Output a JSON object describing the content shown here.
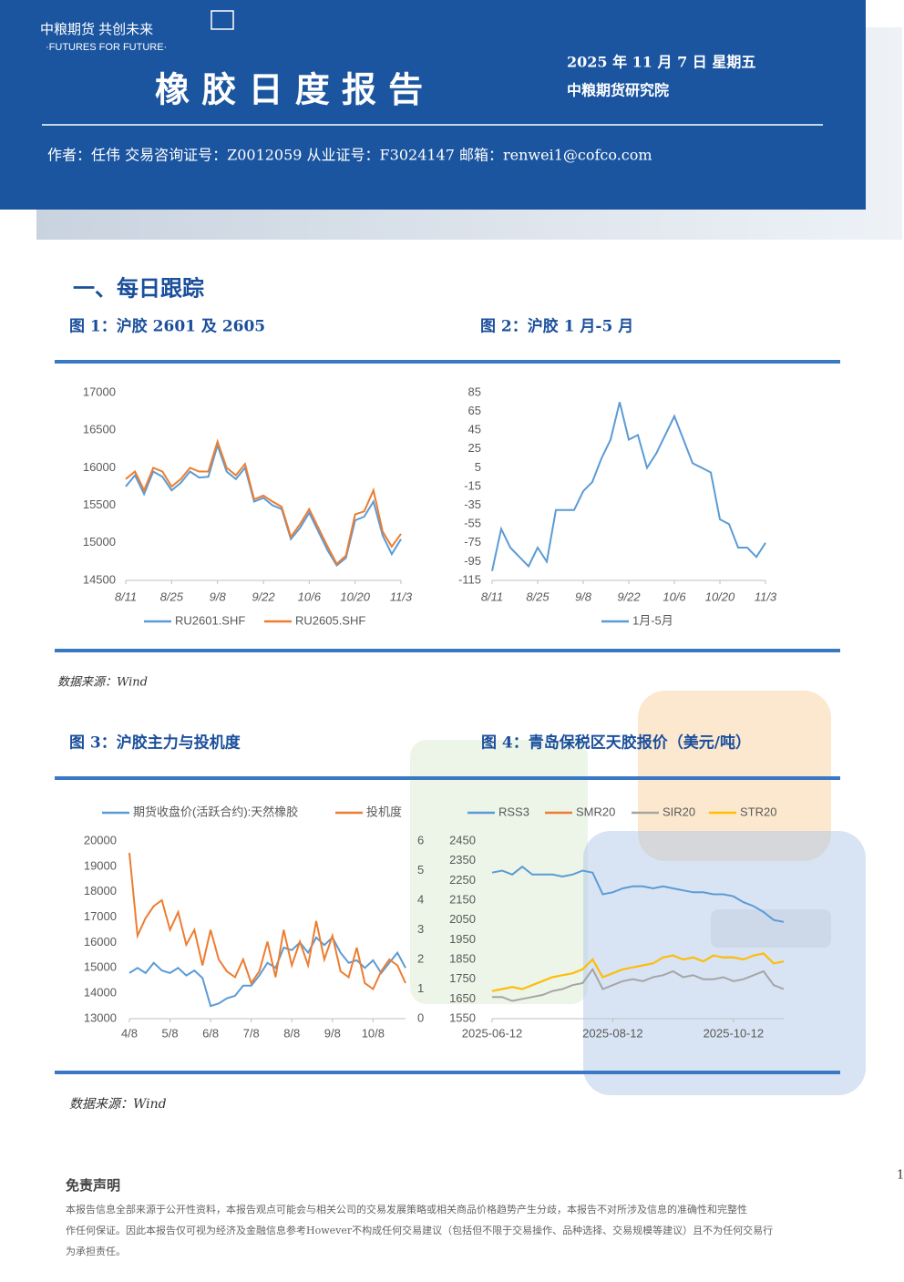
{
  "header": {
    "logo_cn": "中粮期货  共创未来",
    "logo_en": "·FUTURES FOR FUTURE·",
    "title": "橡 胶 日 度 报 告",
    "date": "2025 年 11 月 7 日  星期五",
    "institute": "中粮期货研究院",
    "author_line": "作者：任伟   交易咨询证号：Z0012059   从业证号：F3024147   邮箱：renwei1@cofco.com"
  },
  "section": "一、每日跟踪",
  "sources": [
    "数据来源：Wind",
    "数据来源：Wind"
  ],
  "disclaimer": {
    "title": "免责声明",
    "lines": [
      "本报告信息全部来源于公开性资料，本报告观点可能会与相关公司的交易发展策略或相关商品价格趋势产生分歧，本报告不对所涉及信息的准确性和完整性",
      "作任何保证。因此本报告仅可视为经济及金融信息参考However不构成任何交易建议（包括但不限于交易操作、品种选择、交易规模等建议）且不为任何交易行",
      "为承担责任。"
    ]
  },
  "page_number": "1",
  "chart_data": [
    {
      "type": "line",
      "title": "图 1：沪胶 2601 及 2605",
      "categories": [
        "8/11",
        null,
        null,
        null,
        null,
        "8/25",
        null,
        null,
        null,
        null,
        "9/8",
        null,
        null,
        null,
        null,
        "9/22",
        null,
        null,
        null,
        null,
        "10/6",
        null,
        null,
        null,
        null,
        "10/20",
        null,
        null,
        null,
        null,
        "11/3"
      ],
      "series": [
        {
          "name": "RU2601.SHF",
          "color": "#5b9bd5",
          "values": [
            15750,
            15900,
            15650,
            15950,
            15880,
            15700,
            15800,
            15950,
            15870,
            15880,
            16300,
            15950,
            15850,
            16000,
            15550,
            15600,
            15500,
            15450,
            15050,
            15200,
            15400,
            15150,
            14900,
            14700,
            14800,
            15300,
            15350,
            15550,
            15100,
            14850,
            15050
          ]
        },
        {
          "name": "RU2605.SHF",
          "color": "#ed7d31",
          "values": [
            15850,
            15950,
            15700,
            16000,
            15950,
            15750,
            15850,
            16000,
            15950,
            15950,
            16350,
            16000,
            15900,
            16050,
            15580,
            15630,
            15550,
            15480,
            15080,
            15250,
            15450,
            15200,
            14950,
            14720,
            14830,
            15380,
            15420,
            15700,
            15150,
            14950,
            15120
          ]
        }
      ],
      "ylim": [
        14500,
        17000
      ],
      "yticks": [
        14500,
        15000,
        15500,
        16000,
        16500,
        17000
      ]
    },
    {
      "type": "line",
      "title": "图 2：沪胶 1 月-5 月",
      "categories": [
        "8/11",
        null,
        null,
        null,
        null,
        "8/25",
        null,
        null,
        null,
        null,
        "9/8",
        null,
        null,
        null,
        null,
        "9/22",
        null,
        null,
        null,
        null,
        "10/6",
        null,
        null,
        null,
        null,
        "10/20",
        null,
        null,
        null,
        null,
        "11/3"
      ],
      "series": [
        {
          "name": "1月-5月",
          "color": "#5b9bd5",
          "values": [
            -105,
            -60,
            -80,
            -90,
            -100,
            -80,
            -95,
            -40,
            -40,
            -40,
            -20,
            -10,
            15,
            35,
            75,
            35,
            40,
            5,
            20,
            40,
            60,
            35,
            10,
            5,
            0,
            -50,
            -55,
            -80,
            -80,
            -90,
            -75
          ]
        }
      ],
      "ylim": [
        -115,
        85
      ],
      "yticks": [
        -115,
        -95,
        -75,
        -55,
        -35,
        -15,
        5,
        25,
        45,
        65,
        85
      ]
    },
    {
      "type": "line",
      "title": "图 3：沪胶主力与投机度",
      "categories": [
        "4/8",
        null,
        null,
        null,
        null,
        "5/8",
        null,
        null,
        null,
        null,
        "6/8",
        null,
        null,
        null,
        null,
        "7/8",
        null,
        null,
        null,
        null,
        "8/8",
        null,
        null,
        null,
        null,
        "9/8",
        null,
        null,
        null,
        null,
        "10/8",
        null,
        null,
        null,
        null
      ],
      "series": [
        {
          "name": "期货收盘价(活跃合约):天然橡胶",
          "color": "#5b9bd5",
          "values": [
            14800,
            15000,
            14800,
            15200,
            14900,
            14800,
            15000,
            14700,
            14900,
            14600,
            13500,
            13600,
            13800,
            13900,
            14300,
            14300,
            14700,
            15200,
            15000,
            15800,
            15700,
            16000,
            15600,
            16200,
            15900,
            16200,
            15600,
            15200,
            15300,
            15000,
            15300,
            14800,
            15200,
            15600,
            15000
          ]
        },
        {
          "name": "投机度",
          "color": "#ed7d31",
          "axis": "y2",
          "values": [
            5.6,
            2.8,
            3.4,
            3.8,
            4.0,
            3.0,
            3.6,
            2.5,
            3.0,
            1.8,
            3.0,
            2.0,
            1.6,
            1.4,
            2.0,
            1.2,
            1.6,
            2.6,
            1.4,
            3.0,
            1.8,
            2.6,
            1.8,
            3.3,
            2.0,
            2.8,
            1.6,
            1.4,
            2.4,
            1.2,
            1.0,
            1.6,
            2.0,
            1.8,
            1.2
          ]
        }
      ],
      "ylim": [
        13000,
        20000
      ],
      "yticks": [
        13000,
        14000,
        15000,
        16000,
        17000,
        18000,
        19000,
        20000
      ],
      "y2lim": [
        0,
        6
      ],
      "y2ticks": [
        0,
        1,
        2,
        3,
        4,
        5,
        6
      ]
    },
    {
      "type": "line",
      "title": "图 4：青岛保税区天胶报价（美元/吨）",
      "categories": [
        "2025-06-12",
        null,
        null,
        null,
        null,
        null,
        null,
        null,
        null,
        null,
        null,
        null,
        "2025-08-12",
        null,
        null,
        null,
        null,
        null,
        null,
        null,
        null,
        null,
        null,
        null,
        "2025-10-12",
        null,
        null,
        null,
        null,
        null
      ],
      "series": [
        {
          "name": "RSS3",
          "color": "#5b9bd5",
          "values": [
            2290,
            2300,
            2280,
            2320,
            2280,
            2280,
            2280,
            2270,
            2280,
            2300,
            2290,
            2180,
            2190,
            2210,
            2220,
            2220,
            2210,
            2220,
            2210,
            2200,
            2190,
            2190,
            2180,
            2180,
            2170,
            2140,
            2120,
            2090,
            2050,
            2040
          ]
        },
        {
          "name": "SMR20",
          "color": "#ed7d31",
          "values": [
            1690,
            1700,
            1710,
            1700,
            1720,
            1740,
            1760,
            1770,
            1780,
            1800,
            1850,
            1760,
            1780,
            1800,
            1810,
            1820,
            1830,
            1860,
            1870,
            1850,
            1860,
            1840,
            1870,
            1860,
            1860,
            1850,
            1870,
            1880,
            1830,
            1840
          ]
        },
        {
          "name": "SIR20",
          "color": "#a5a5a5",
          "values": [
            1660,
            1660,
            1640,
            1650,
            1660,
            1670,
            1690,
            1700,
            1720,
            1730,
            1800,
            1700,
            1720,
            1740,
            1750,
            1740,
            1760,
            1770,
            1790,
            1760,
            1770,
            1750,
            1750,
            1760,
            1740,
            1750,
            1770,
            1790,
            1720,
            1700
          ]
        },
        {
          "name": "STR20",
          "color": "#ffc000",
          "values": [
            1690,
            1700,
            1710,
            1700,
            1720,
            1740,
            1760,
            1770,
            1780,
            1800,
            1850,
            1760,
            1780,
            1800,
            1810,
            1820,
            1830,
            1860,
            1870,
            1850,
            1860,
            1840,
            1870,
            1860,
            1860,
            1850,
            1870,
            1880,
            1830,
            1840
          ]
        }
      ],
      "ylim": [
        1550,
        2450
      ],
      "yticks": [
        1550,
        1650,
        1750,
        1850,
        1950,
        2050,
        2150,
        2250,
        2350,
        2450
      ]
    }
  ]
}
